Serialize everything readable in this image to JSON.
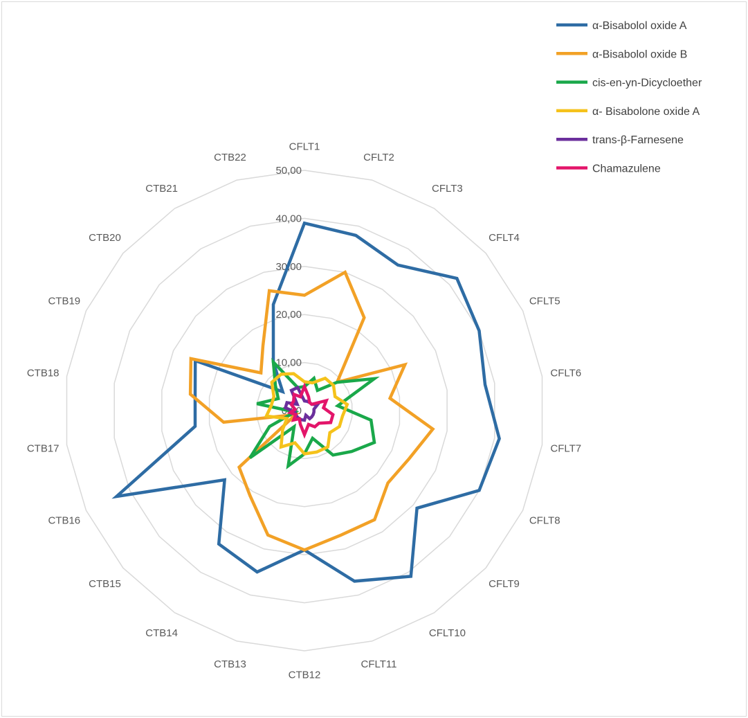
{
  "chart_data": {
    "type": "radar",
    "title": "",
    "rmax": 50,
    "ticks": [
      "0,00",
      "10,00",
      "20,00",
      "30,00",
      "40,00",
      "50,00"
    ],
    "categories": [
      "CFLT1",
      "CFLT2",
      "CFLT3",
      "CFLT4",
      "CFLT5",
      "CFLT6",
      "CFLT7",
      "CFLT8",
      "CFLT9",
      "CFLT10",
      "CFLT11",
      "CTB12",
      "CTB13",
      "CTB14",
      "CTB15",
      "CTB16",
      "CTB17",
      "CTB18",
      "CTB19",
      "CTB20",
      "CTB21",
      "CTB22"
    ],
    "legend_position": "top-right",
    "series": [
      {
        "name": "α-Bisabolol oxide A",
        "color": "#2e6ca4",
        "values": [
          39,
          38,
          36,
          42,
          40,
          38,
          41,
          40,
          31,
          41,
          37,
          29,
          35,
          33,
          22,
          43,
          23,
          23,
          25,
          6,
          12,
          23
        ]
      },
      {
        "name": "α-Bisabolol oxide B",
        "color": "#f2a126",
        "values": [
          24,
          30,
          23,
          9,
          23,
          18,
          27,
          24,
          23,
          27,
          27,
          29,
          27,
          21,
          18,
          2,
          17,
          24,
          26,
          12,
          16,
          26
        ]
      },
      {
        "name": "cis-en-yn-Dicycloether",
        "color": "#1aa84a",
        "values": [
          5,
          7,
          5,
          9,
          16,
          7,
          14,
          16,
          13,
          11,
          6,
          9,
          12,
          4,
          15,
          8,
          2,
          10,
          6,
          8,
          12,
          5
        ]
      },
      {
        "name": "α- Bisabolone oxide A",
        "color": "#f5c21b",
        "values": [
          6,
          6,
          8,
          8,
          7,
          9,
          8,
          8,
          7,
          9,
          9,
          9,
          7,
          9,
          6,
          4,
          8,
          7,
          7,
          9,
          9,
          8
        ]
      },
      {
        "name": "trans-β-Farnesene",
        "color": "#6b2f9c",
        "values": [
          2,
          2,
          2,
          2,
          3,
          2,
          2,
          2,
          2,
          2,
          1,
          2,
          2,
          2,
          2,
          2,
          2,
          4,
          4,
          2,
          5,
          5
        ]
      },
      {
        "name": "Chamazulene",
        "color": "#e3156a",
        "values": [
          5,
          3,
          2,
          2,
          5,
          4,
          6,
          6,
          4,
          4,
          3,
          5,
          3,
          2,
          3,
          2,
          3,
          2,
          3,
          3,
          4,
          3
        ]
      }
    ]
  }
}
